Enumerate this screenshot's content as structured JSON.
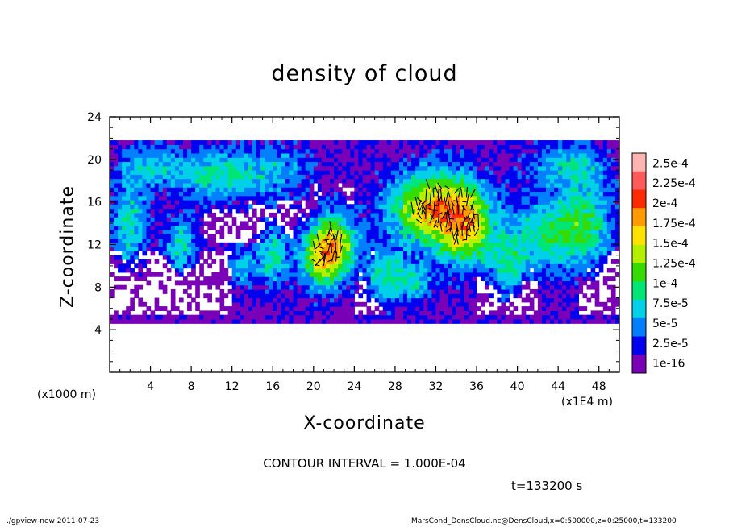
{
  "chart_data": {
    "type": "heatmap",
    "title": "density of cloud",
    "xlabel": "X-coordinate",
    "ylabel": "Z-coordinate",
    "x_unit_left": "(x1000 m)",
    "x_unit_right": "(x1E4 m)",
    "xlim": [
      0,
      50
    ],
    "ylim": [
      0,
      24
    ],
    "x_ticks": [
      4,
      8,
      12,
      16,
      20,
      24,
      28,
      32,
      36,
      40,
      44,
      48
    ],
    "y_ticks": [
      4,
      8,
      12,
      16,
      20,
      24
    ],
    "x_tick_labels": [
      "4",
      "8",
      "12",
      "16",
      "20",
      "24",
      "28",
      "32",
      "36",
      "40",
      "44",
      "48"
    ],
    "y_tick_labels": [
      "4",
      "8",
      "12",
      "16",
      "20",
      "24"
    ],
    "colorbar": {
      "labels": [
        "2.5e-4",
        "2.25e-4",
        "2e-4",
        "1.75e-4",
        "1.5e-4",
        "1.25e-4",
        "1e-4",
        "7.5e-5",
        "5e-5",
        "2.5e-5",
        "1e-16"
      ],
      "colors": [
        "#ffb4b4",
        "#ff5a5a",
        "#ff2a00",
        "#ff9a00",
        "#ffe200",
        "#b4f000",
        "#36dc00",
        "#00e676",
        "#00d0e8",
        "#0080ff",
        "#0000ee",
        "#7a00b8"
      ]
    },
    "contour_interval": "CONTOUR INTERVAL = 1.000E-04",
    "time": "t=133200 s",
    "cloud_layer_z": [
      4.6,
      21.8
    ],
    "footer_left": "./gpview-new   2011-07-23",
    "footer_right": "MarsCond_DensCloud.nc@DensCloud,x=0:500000,z=0:25000,t=133200"
  }
}
